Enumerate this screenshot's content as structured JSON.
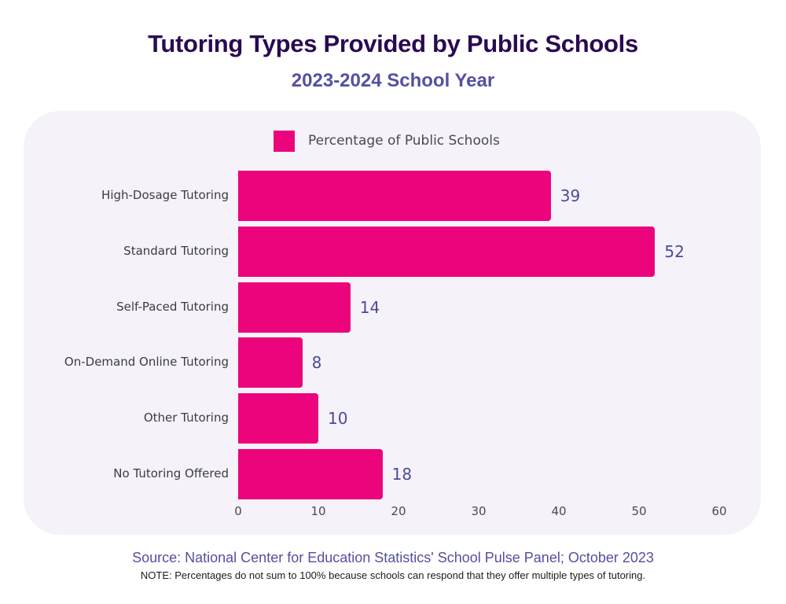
{
  "header": {
    "title": "Tutoring Types Provided by Public Schools",
    "subtitle": "2023-2024 School Year"
  },
  "legend": {
    "label": "Percentage of Public Schools",
    "color": "#ec047c"
  },
  "footer": {
    "source": "Source: National Center for Education Statistics' School Pulse Panel; October 2023",
    "note": "NOTE: Percentages do not sum to 100% because schools can respond that they offer multiple types of tutoring."
  },
  "colors": {
    "bar": "#ec047c",
    "title": "#2a0a52",
    "subtitle": "#5450a0",
    "value_label": "#4b4a98",
    "panel_bg": "#f5f3f9"
  },
  "chart_data": {
    "type": "bar",
    "orientation": "horizontal",
    "title": "Tutoring Types Provided by Public Schools",
    "subtitle": "2023-2024 School Year",
    "categories": [
      "High-Dosage Tutoring",
      "Standard Tutoring",
      "Self-Paced Tutoring",
      "On-Demand Online Tutoring",
      "Other Tutoring",
      "No Tutoring Offered"
    ],
    "series": [
      {
        "name": "Percentage of Public Schools",
        "color": "#ec047c",
        "values": [
          39,
          52,
          14,
          8,
          10,
          18
        ]
      }
    ],
    "value_labels": [
      "39",
      "52",
      "14",
      "8",
      "10",
      "18"
    ],
    "xlabel": "",
    "ylabel": "",
    "xlim": [
      0,
      60
    ],
    "x_ticks": [
      "0",
      "10",
      "20",
      "30",
      "40",
      "50",
      "60"
    ],
    "grid": false,
    "legend_position": "top",
    "source": "Source: National Center for Education Statistics' School Pulse Panel; October 2023",
    "note": "NOTE: Percentages do not sum to 100% because schools can respond that they offer multiple types of tutoring."
  }
}
